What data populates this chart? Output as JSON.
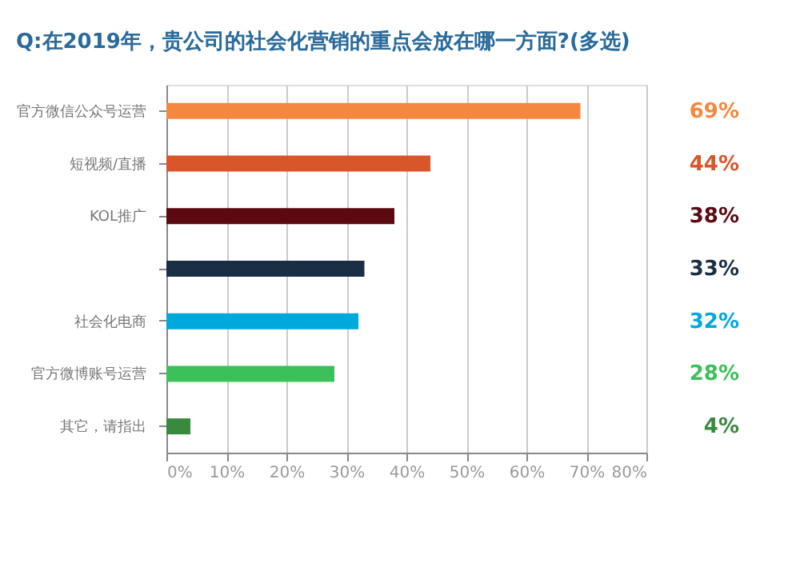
{
  "chart_data": {
    "type": "bar",
    "orientation": "horizontal",
    "title": "Q:在2019年，贵公司的社会化营销的重点会放在哪一方面?(多选)",
    "categories": [
      "官方微信公众号运营",
      "短视频/直播",
      "KOL推广",
      null,
      "社会化电商",
      "官方微博账号运营",
      "其它，请指出"
    ],
    "values": [
      69,
      44,
      38,
      33,
      32,
      28,
      4
    ],
    "colors": [
      "#f5883f",
      "#d9552a",
      "#5a0a10",
      "#1a2e45",
      "#00a9dc",
      "#3cc05a",
      "#3a8a3e"
    ],
    "xlim": [
      0,
      80
    ],
    "xticks": [
      {
        "value": 0,
        "label": "0%"
      },
      {
        "value": 10,
        "label": "10%"
      },
      {
        "value": 20,
        "label": "20%"
      },
      {
        "value": 30,
        "label": "30%"
      },
      {
        "value": 40,
        "label": "40%"
      },
      {
        "value": 50,
        "label": "50%"
      },
      {
        "value": 60,
        "label": "60%"
      },
      {
        "value": 70,
        "label": "70%"
      },
      {
        "value": 80,
        "label": "80%"
      }
    ],
    "value_labels": [
      "69%",
      "44%",
      "38%",
      "33%",
      "32%",
      "28%",
      "4%"
    ],
    "grid": "x"
  }
}
